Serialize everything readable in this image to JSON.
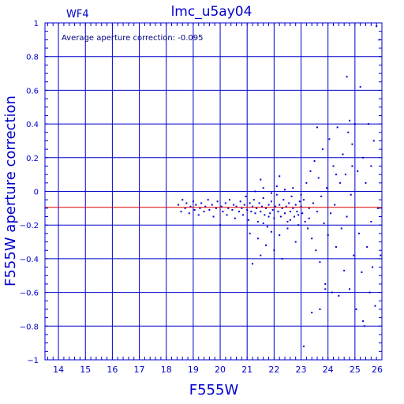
{
  "header": {
    "panel": "WF4",
    "title": "lmc_u5ay04"
  },
  "colors": {
    "frame": "#0000cc",
    "points": "#0000cc",
    "reference_line": "#dd0000",
    "background": "#ffffff"
  },
  "chart_data": {
    "type": "scatter",
    "xlabel": "F555W",
    "ylabel": "F555W aperture correction",
    "annotation": "Average aperture correction: -0.095",
    "xlim": [
      13.5,
      26
    ],
    "ylim": [
      -1,
      1
    ],
    "grid": true,
    "minor_ticks": true,
    "xticks": [
      14,
      15,
      16,
      17,
      18,
      19,
      20,
      21,
      22,
      23,
      24,
      25,
      26
    ],
    "yticks": [
      -1,
      -0.8,
      -0.6,
      -0.4,
      -0.2,
      0,
      0.2,
      0.4,
      0.6,
      0.8,
      1
    ],
    "xtick_labels": [
      "14",
      "15",
      "16",
      "17",
      "18",
      "19",
      "20",
      "21",
      "22",
      "23",
      "24",
      "25",
      "26"
    ],
    "ytick_labels": [
      "−1",
      "−0.8",
      "−0.6",
      "−0.4",
      "−0.2",
      "0",
      "0.2",
      "0.4",
      "0.6",
      "0.8",
      "1"
    ],
    "reference_line": {
      "y": -0.095
    },
    "series": [
      {
        "points": [
          [
            18.45,
            -0.08
          ],
          [
            18.55,
            -0.12
          ],
          [
            18.6,
            -0.05
          ],
          [
            18.7,
            -0.1
          ],
          [
            18.75,
            -0.07
          ],
          [
            18.85,
            -0.13
          ],
          [
            18.9,
            -0.09
          ],
          [
            19.0,
            -0.06
          ],
          [
            19.05,
            -0.11
          ],
          [
            19.1,
            -0.08
          ],
          [
            19.2,
            -0.14
          ],
          [
            19.25,
            -0.1
          ],
          [
            19.3,
            -0.07
          ],
          [
            19.4,
            -0.12
          ],
          [
            19.45,
            -0.09
          ],
          [
            19.55,
            -0.05
          ],
          [
            19.6,
            -0.11
          ],
          [
            19.7,
            -0.08
          ],
          [
            19.75,
            -0.15
          ],
          [
            19.85,
            -0.1
          ],
          [
            19.9,
            -0.06
          ],
          [
            20.0,
            -0.2
          ],
          [
            20.05,
            -0.09
          ],
          [
            20.1,
            -0.12
          ],
          [
            20.2,
            -0.07
          ],
          [
            20.25,
            -0.14
          ],
          [
            20.3,
            -0.1
          ],
          [
            20.35,
            -0.05
          ],
          [
            20.45,
            -0.11
          ],
          [
            20.5,
            -0.08
          ],
          [
            20.55,
            -0.16
          ],
          [
            20.6,
            -0.09
          ],
          [
            20.7,
            -0.12
          ],
          [
            20.75,
            -0.06
          ],
          [
            20.8,
            -0.1
          ],
          [
            20.85,
            -0.14
          ],
          [
            20.9,
            -0.08
          ],
          [
            20.95,
            -0.03
          ],
          [
            21.0,
            -0.11
          ],
          [
            21.05,
            -0.17
          ],
          [
            21.1,
            -0.07
          ],
          [
            21.15,
            -0.12
          ],
          [
            21.2,
            -0.09
          ],
          [
            21.25,
            -0.05
          ],
          [
            21.3,
            -0.13
          ],
          [
            21.35,
            -0.1
          ],
          [
            21.4,
            -0.18
          ],
          [
            21.45,
            -0.07
          ],
          [
            21.5,
            -0.12
          ],
          [
            21.55,
            -0.09
          ],
          [
            21.6,
            -0.04
          ],
          [
            21.65,
            -0.14
          ],
          [
            21.7,
            -0.1
          ],
          [
            21.75,
            -0.21
          ],
          [
            21.8,
            -0.08
          ],
          [
            21.85,
            -0.13
          ],
          [
            21.9,
            -0.06
          ],
          [
            21.95,
            -0.11
          ],
          [
            22.0,
            -0.16
          ],
          [
            22.05,
            -0.09
          ],
          [
            22.1,
            -0.02
          ],
          [
            22.15,
            -0.12
          ],
          [
            22.2,
            -0.08
          ],
          [
            22.25,
            -0.15
          ],
          [
            22.3,
            -0.1
          ],
          [
            22.35,
            -0.05
          ],
          [
            22.4,
            -0.13
          ],
          [
            22.45,
            -0.09
          ],
          [
            22.5,
            -0.18
          ],
          [
            22.55,
            -0.07
          ],
          [
            22.6,
            -0.12
          ],
          [
            22.65,
            -0.03
          ],
          [
            22.7,
            -0.1
          ],
          [
            22.75,
            -0.15
          ],
          [
            22.8,
            -0.08
          ],
          [
            22.85,
            -0.12
          ],
          [
            22.9,
            -0.2
          ],
          [
            22.95,
            -0.06
          ],
          [
            21.1,
            -0.25
          ],
          [
            21.4,
            -0.28
          ],
          [
            21.6,
            -0.19
          ],
          [
            21.9,
            -0.24
          ],
          [
            22.2,
            -0.26
          ],
          [
            22.5,
            -0.22
          ],
          [
            22.8,
            -0.3
          ],
          [
            21.2,
            -0.43
          ],
          [
            21.5,
            -0.38
          ],
          [
            21.7,
            -0.32
          ],
          [
            22.0,
            -0.35
          ],
          [
            22.3,
            -0.4
          ],
          [
            21.3,
            0.0
          ],
          [
            21.6,
            0.02
          ],
          [
            21.9,
            -0.01
          ],
          [
            21.5,
            0.07
          ],
          [
            22.1,
            0.03
          ],
          [
            22.4,
            0.01
          ],
          [
            22.7,
            0.02
          ],
          [
            23.0,
            -0.02
          ],
          [
            22.2,
            0.09
          ],
          [
            21.8,
            -0.15
          ],
          [
            22.6,
            -0.17
          ],
          [
            22.9,
            -0.14
          ],
          [
            23.0,
            -0.09
          ],
          [
            23.05,
            -0.13
          ],
          [
            23.1,
            -0.05
          ],
          [
            23.15,
            -0.18
          ],
          [
            23.2,
            0.05
          ],
          [
            23.25,
            -0.22
          ],
          [
            23.3,
            -0.1
          ],
          [
            23.35,
            0.12
          ],
          [
            23.4,
            -0.28
          ],
          [
            23.45,
            -0.07
          ],
          [
            23.5,
            0.18
          ],
          [
            23.55,
            -0.35
          ],
          [
            23.6,
            -0.12
          ],
          [
            23.65,
            0.08
          ],
          [
            23.7,
            -0.42
          ],
          [
            23.75,
            -0.03
          ],
          [
            23.8,
            0.25
          ],
          [
            23.85,
            -0.19
          ],
          [
            23.9,
            -0.55
          ],
          [
            23.95,
            0.02
          ],
          [
            24.0,
            -0.26
          ],
          [
            24.05,
            0.31
          ],
          [
            24.1,
            -0.13
          ],
          [
            24.15,
            -0.6
          ],
          [
            24.2,
            0.15
          ],
          [
            24.25,
            -0.08
          ],
          [
            24.3,
            -0.33
          ],
          [
            24.35,
            0.38
          ],
          [
            24.4,
            -0.62
          ],
          [
            24.45,
            0.05
          ],
          [
            24.5,
            -0.22
          ],
          [
            24.55,
            0.22
          ],
          [
            24.6,
            -0.47
          ],
          [
            24.65,
            0.1
          ],
          [
            24.7,
            -0.15
          ],
          [
            24.75,
            0.35
          ],
          [
            24.8,
            -0.58
          ],
          [
            24.85,
            -0.02
          ],
          [
            24.9,
            0.28
          ],
          [
            24.95,
            -0.38
          ],
          [
            25.0,
            0.4
          ],
          [
            25.05,
            -0.7
          ],
          [
            25.1,
            0.12
          ],
          [
            25.15,
            -0.25
          ],
          [
            25.2,
            0.62
          ],
          [
            25.25,
            -0.48
          ],
          [
            25.3,
            0.2
          ],
          [
            25.35,
            -0.8
          ],
          [
            25.4,
            0.05
          ],
          [
            25.45,
            -0.33
          ],
          [
            25.5,
            0.4
          ],
          [
            25.55,
            -0.6
          ],
          [
            25.6,
            0.15
          ],
          [
            25.65,
            -0.45
          ],
          [
            25.7,
            0.3
          ],
          [
            25.75,
            -0.68
          ],
          [
            25.8,
            0.98
          ],
          [
            25.85,
            -0.1
          ],
          [
            25.9,
            0.9
          ],
          [
            25.95,
            -0.38
          ],
          [
            24.7,
            0.68
          ],
          [
            23.4,
            -0.72
          ],
          [
            23.7,
            -0.7
          ],
          [
            23.1,
            -0.92
          ],
          [
            23.9,
            -0.58
          ],
          [
            24.8,
            0.42
          ],
          [
            25.3,
            -0.77
          ],
          [
            23.6,
            0.38
          ],
          [
            24.3,
            0.1
          ],
          [
            24.9,
            0.15
          ],
          [
            25.6,
            -0.18
          ],
          [
            23.3,
            -0.16
          ]
        ]
      }
    ]
  }
}
